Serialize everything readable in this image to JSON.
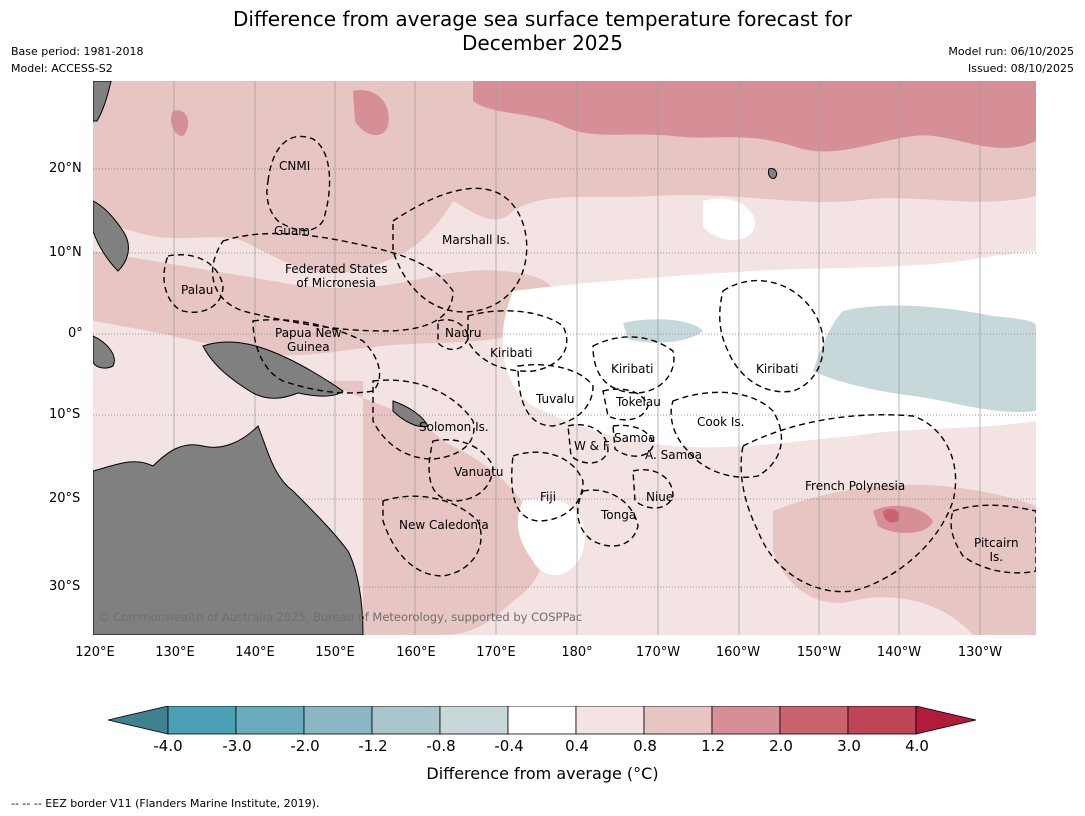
{
  "header": {
    "title_line1": "Difference from average sea surface temperature forecast for",
    "title_line2": "December 2025",
    "base_period": "Base period: 1981-2018",
    "model": "Model: ACCESS-S2",
    "model_run": "Model run: 06/10/2025",
    "issued": "Issued: 08/10/2025"
  },
  "map": {
    "lat_labels": [
      "20°N",
      "10°N",
      "0°",
      "10°S",
      "20°S",
      "30°S"
    ],
    "lon_labels": [
      "120°E",
      "130°E",
      "140°E",
      "150°E",
      "160°E",
      "170°E",
      "180°",
      "170°W",
      "160°W",
      "150°W",
      "140°W",
      "130°W"
    ],
    "regions": {
      "cnmi": "CNMI",
      "guam": "Guam",
      "marshall": "Marshall Is.",
      "fsm_1": "Federated States",
      "fsm_2": "of Micronesia",
      "palau": "Palau",
      "png_1": "Papua New",
      "png_2": "Guinea",
      "nauru": "Nauru",
      "kiribati_w": "Kiribati",
      "kiribati_c": "Kiribati",
      "kiribati_e": "Kiribati",
      "tuvalu": "Tuvalu",
      "tokelau": "Tokelau",
      "cook": "Cook Is.",
      "solomon": "Solomon Is.",
      "samoa_1": "W & F",
      "samoa_2": "Samoa",
      "asamoa": "A. Samoa",
      "vanuatu": "Vanuatu",
      "fiji": "Fiji",
      "niue": "Niue",
      "french_polynesia": "French Polynesia",
      "tonga": "Tonga",
      "new_caledonia": "New Caledonia",
      "pitcairn_1": "Pitcairn",
      "pitcairn_2": "Is."
    },
    "copyright": "© Commonwealth of Australia 2025, Bureau of Meteorology, supported by COSPPac",
    "colors": {
      "land": "#808080",
      "anom_0_4_0_8": "#f3e4e3",
      "anom_0_8_1_2": "#e7c5c2",
      "anom_1_2_2_0": "#d78f97",
      "anom_2_0_3_0": "#c9646f",
      "anom_neg_0_8_0_4": "#c7d8db"
    }
  },
  "colorbar": {
    "title": "Difference from average (°C)",
    "ticks": [
      "-4.0",
      "-3.0",
      "-2.0",
      "-1.2",
      "-0.8",
      "-0.4",
      "0.4",
      "0.8",
      "1.2",
      "2.0",
      "3.0",
      "4.0"
    ],
    "colors": [
      "#3e8290",
      "#4aa1b5",
      "#6aacbd",
      "#8ab7c3",
      "#a9c6cc",
      "#c7d8db",
      "#ffffff",
      "#f3e4e3",
      "#e7c5c2",
      "#d78f97",
      "#c9646f",
      "#bd4555",
      "#b01c3a"
    ]
  },
  "footnote": "--  --  -- EEZ border V11 (Flanders Marine Institute, 2019)."
}
